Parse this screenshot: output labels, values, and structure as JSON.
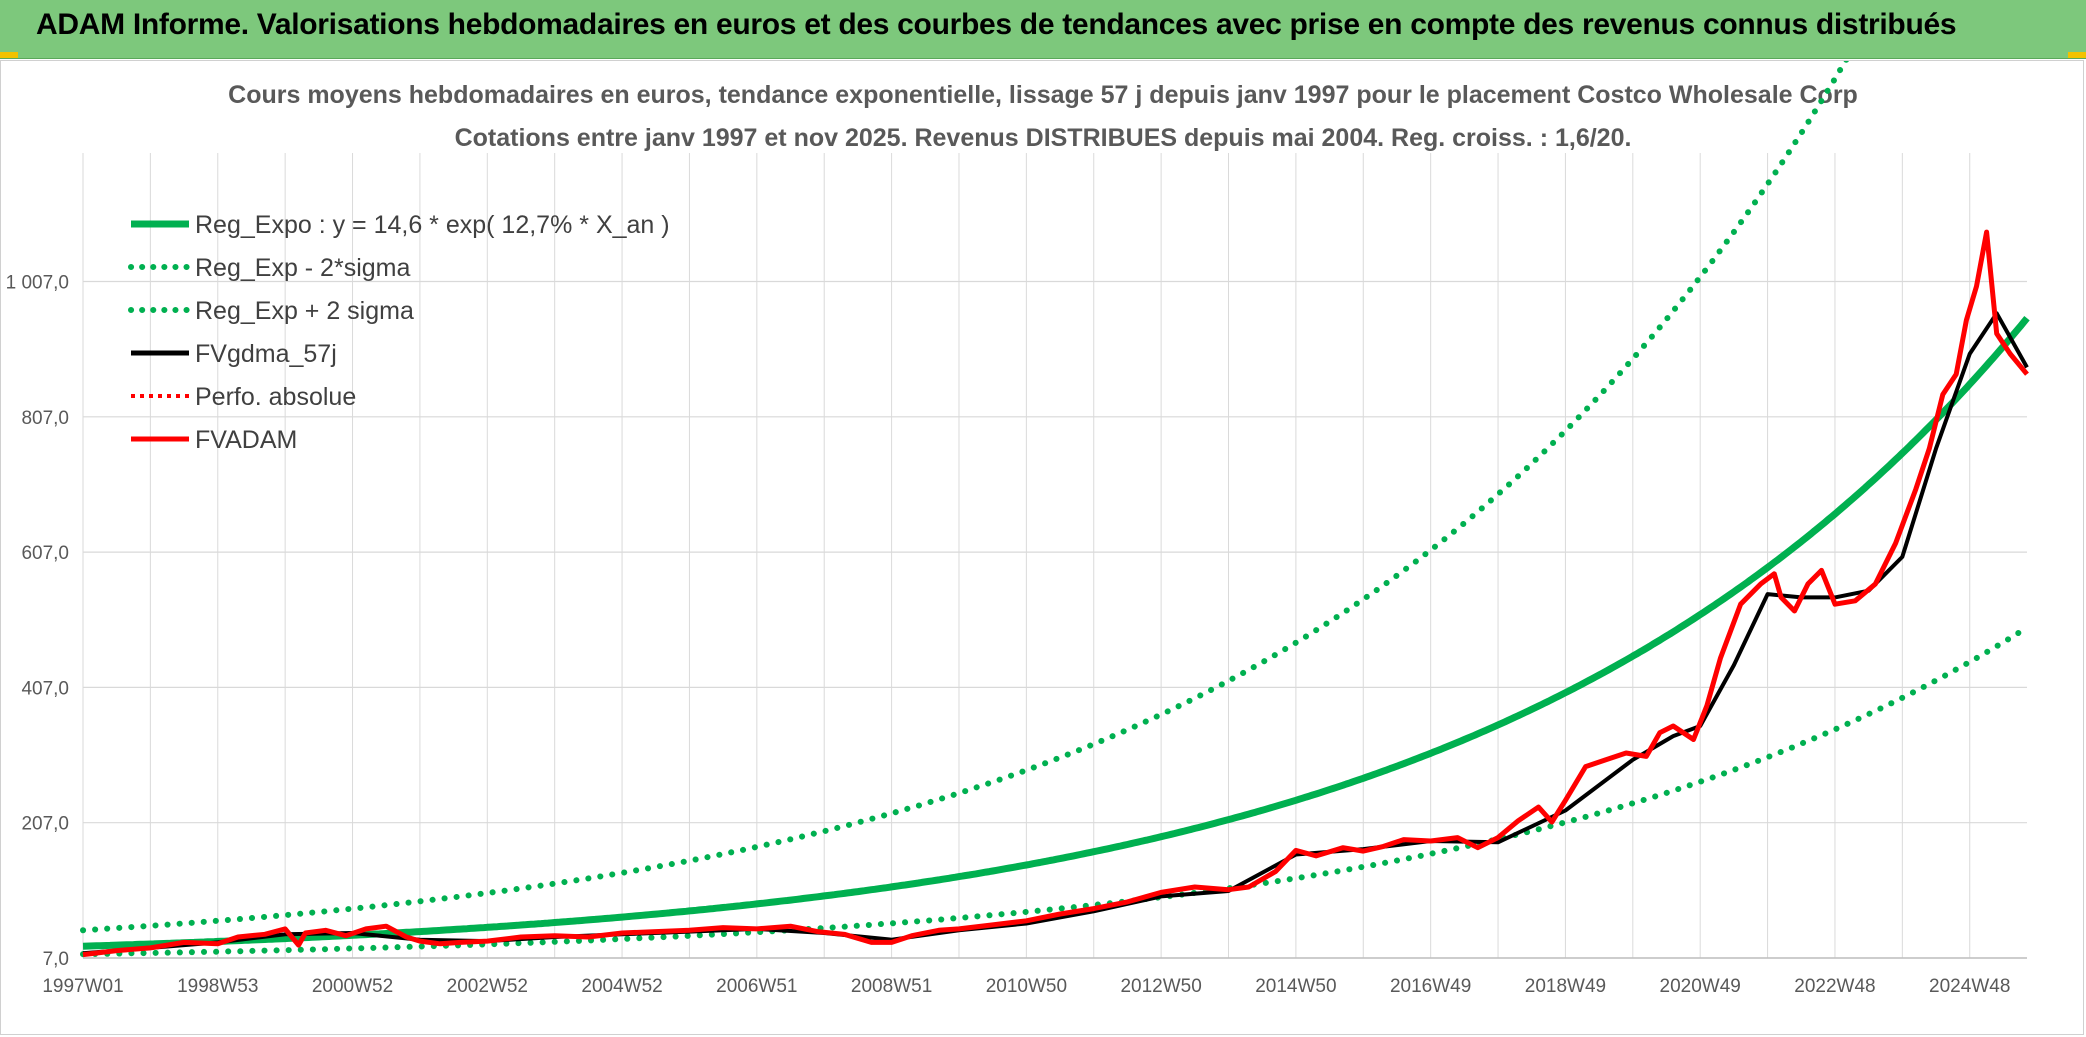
{
  "header": {
    "title": "ADAM Informe. Valorisations hebdomadaires en euros et des courbes de tendances avec prise en compte des revenus connus distribués"
  },
  "chart_data": {
    "type": "line",
    "title_lines": [
      "Cours moyens hebdomadaires en euros, tendance exponentielle, lissage 57 j depuis janv 1997 pour le placement Costco Wholesale Corp",
      "Cotations entre janv 1997 et nov 2025. Revenus DISTRIBUES depuis mai 2004. Reg. croiss. : 1,6/20."
    ],
    "y_range": [
      7,
      1197
    ],
    "y_ticks": [
      {
        "value": 7,
        "label": "7,0"
      },
      {
        "value": 207,
        "label": "207,0"
      },
      {
        "value": 407,
        "label": "407,0"
      },
      {
        "value": 607,
        "label": "607,0"
      },
      {
        "value": 807,
        "label": "807,0"
      },
      {
        "value": 1007,
        "label": "1 007,0"
      }
    ],
    "x_range": [
      1997.0,
      2025.85
    ],
    "x_ticks": [
      {
        "value": 1997.0,
        "label": "1997W01"
      },
      {
        "value": 1999.0,
        "label": "1998W53"
      },
      {
        "value": 2001.0,
        "label": "2000W52"
      },
      {
        "value": 2003.0,
        "label": "2002W52"
      },
      {
        "value": 2005.0,
        "label": "2004W52"
      },
      {
        "value": 2007.0,
        "label": "2006W51"
      },
      {
        "value": 2009.0,
        "label": "2008W51"
      },
      {
        "value": 2011.0,
        "label": "2010W50"
      },
      {
        "value": 2013.0,
        "label": "2012W50"
      },
      {
        "value": 2015.0,
        "label": "2014W50"
      },
      {
        "value": 2017.0,
        "label": "2016W49"
      },
      {
        "value": 2019.0,
        "label": "2018W49"
      },
      {
        "value": 2021.0,
        "label": "2020W49"
      },
      {
        "value": 2023.0,
        "label": "2022W48"
      },
      {
        "value": 2025.0,
        "label": "2024W48"
      }
    ],
    "regression": {
      "a": 14.6,
      "rate": 0.127,
      "sigma_factor": 2.0
    },
    "legend": [
      {
        "key": "reg",
        "label": "Reg_Expo : y = 14,6 * exp( 12,7% *  X_an )",
        "color": "#00b050",
        "style": "solid"
      },
      {
        "key": "low",
        "label": "Reg_Exp - 2*sigma",
        "color": "#00b050",
        "style": "dotted"
      },
      {
        "key": "high",
        "label": "Reg_Exp + 2 sigma",
        "color": "#00b050",
        "style": "dotted"
      },
      {
        "key": "smooth",
        "label": "FVgdma_57j",
        "color": "#000000",
        "style": "solid"
      },
      {
        "key": "perf",
        "label": "Perfo. absolue",
        "color": "#ff0000",
        "style": "dotted"
      },
      {
        "key": "adam",
        "label": "FVADAM",
        "color": "#ff0000",
        "style": "solid"
      }
    ],
    "series_fvadam": {
      "name": "FVADAM",
      "x": [
        1997.0,
        1997.5,
        1998.0,
        1998.5,
        1999.0,
        1999.3,
        1999.7,
        2000.0,
        2000.2,
        2000.3,
        2000.6,
        2000.9,
        2001.2,
        2001.5,
        2001.8,
        2002.0,
        2002.3,
        2002.6,
        2003.0,
        2003.5,
        2004.0,
        2004.5,
        2005.0,
        2005.5,
        2006.0,
        2006.5,
        2007.0,
        2007.5,
        2007.9,
        2008.3,
        2008.7,
        2009.0,
        2009.3,
        2009.7,
        2010.0,
        2010.5,
        2011.0,
        2011.5,
        2012.0,
        2012.5,
        2013.0,
        2013.5,
        2014.0,
        2014.3,
        2014.7,
        2015.0,
        2015.3,
        2015.7,
        2016.0,
        2016.3,
        2016.6,
        2017.0,
        2017.4,
        2017.7,
        2018.0,
        2018.3,
        2018.6,
        2018.8,
        2019.0,
        2019.3,
        2019.6,
        2019.9,
        2020.2,
        2020.4,
        2020.6,
        2020.9,
        2021.1,
        2021.3,
        2021.6,
        2021.9,
        2022.1,
        2022.2,
        2022.4,
        2022.6,
        2022.8,
        2023.0,
        2023.3,
        2023.6,
        2023.9,
        2024.2,
        2024.4,
        2024.6,
        2024.8,
        2024.95,
        2025.1,
        2025.25,
        2025.4,
        2025.6,
        2025.85
      ],
      "y": [
        12,
        18,
        22,
        30,
        28,
        38,
        42,
        50,
        26,
        44,
        48,
        40,
        50,
        54,
        38,
        32,
        28,
        30,
        32,
        38,
        40,
        38,
        44,
        46,
        48,
        52,
        50,
        54,
        46,
        42,
        30,
        30,
        40,
        48,
        50,
        56,
        62,
        72,
        80,
        90,
        104,
        112,
        108,
        112,
        135,
        166,
        158,
        170,
        165,
        172,
        182,
        180,
        185,
        170,
        185,
        210,
        230,
        208,
        240,
        290,
        300,
        310,
        305,
        340,
        350,
        330,
        380,
        450,
        530,
        560,
        575,
        540,
        520,
        560,
        580,
        530,
        535,
        560,
        620,
        700,
        760,
        840,
        870,
        950,
        1000,
        1080,
        930,
        900,
        870
      ]
    },
    "series_fvgdma_57j": {
      "name": "FVgdma_57j",
      "x": [
        1997.0,
        1998.0,
        1999.0,
        2000.0,
        2001.0,
        2002.0,
        2003.0,
        2004.0,
        2005.0,
        2006.0,
        2007.0,
        2008.0,
        2009.0,
        2010.0,
        2011.0,
        2012.0,
        2013.0,
        2014.0,
        2015.0,
        2016.0,
        2017.0,
        2018.0,
        2019.0,
        2020.0,
        2020.6,
        2021.0,
        2021.5,
        2022.0,
        2022.5,
        2023.0,
        2023.5,
        2024.0,
        2024.5,
        2025.0,
        2025.4,
        2025.85
      ],
      "y": [
        14,
        22,
        30,
        42,
        44,
        34,
        32,
        38,
        42,
        46,
        50,
        44,
        34,
        48,
        58,
        76,
        98,
        106,
        160,
        168,
        180,
        178,
        225,
        300,
        335,
        350,
        440,
        545,
        540,
        540,
        550,
        600,
        760,
        900,
        960,
        880
      ]
    }
  }
}
